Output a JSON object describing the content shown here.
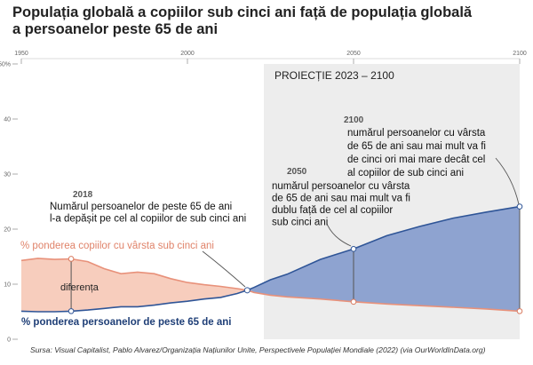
{
  "title_lines": [
    "Populația globală a copiilor sub cinci ani față de populația globală",
    "a persoanelor peste 65 de ani"
  ],
  "source": "Sursa: Visual Capitalist, Pablo Alvarez/Organizația Națiunilor Unite, Perspectivele Populației Mondiale (2022) (via OurWorldInData.org)",
  "chart_data": {
    "type": "area",
    "xlim": [
      1950,
      2100
    ],
    "ylim": [
      0,
      50
    ],
    "x_ticks": [
      {
        "value": 1950,
        "label": "1950"
      },
      {
        "value": 2000,
        "label": "2000"
      },
      {
        "value": 2050,
        "label": "2050"
      },
      {
        "value": 2100,
        "label": "2100"
      }
    ],
    "y_ticks": [
      {
        "value": 0,
        "label": "0"
      },
      {
        "value": 10,
        "label": "10"
      },
      {
        "value": 20,
        "label": "20"
      },
      {
        "value": 30,
        "label": "30"
      },
      {
        "value": 40,
        "label": "40"
      },
      {
        "value": 50,
        "label": "50%"
      }
    ],
    "series": [
      {
        "name": "% ponderea copiilor cu vârsta sub cinci ani",
        "color": "#e8917a",
        "x": [
          1950,
          1955,
          1960,
          1965,
          1970,
          1975,
          1980,
          1985,
          1990,
          1995,
          2000,
          2005,
          2010,
          2015,
          2018,
          2020,
          2025,
          2030,
          2040,
          2050,
          2060,
          2070,
          2080,
          2090,
          2100
        ],
        "values": [
          14.3,
          14.7,
          14.5,
          14.6,
          14.1,
          12.8,
          11.9,
          12.2,
          11.9,
          11.0,
          10.3,
          9.9,
          9.6,
          9.2,
          8.9,
          8.5,
          8.0,
          7.7,
          7.3,
          6.8,
          6.4,
          6.1,
          5.8,
          5.5,
          5.1
        ]
      },
      {
        "name": "% ponderea persoanelor de peste 65 de ani",
        "color": "#2f5597",
        "x": [
          1950,
          1955,
          1960,
          1965,
          1970,
          1975,
          1980,
          1985,
          1990,
          1995,
          2000,
          2005,
          2010,
          2015,
          2018,
          2020,
          2025,
          2030,
          2040,
          2050,
          2060,
          2070,
          2080,
          2090,
          2100
        ],
        "values": [
          5.1,
          5.0,
          5.0,
          5.1,
          5.3,
          5.6,
          5.9,
          5.9,
          6.2,
          6.6,
          6.9,
          7.3,
          7.6,
          8.3,
          8.9,
          9.4,
          10.8,
          11.8,
          14.5,
          16.4,
          18.8,
          20.5,
          22.0,
          23.1,
          24.1
        ]
      }
    ],
    "projection": {
      "from": 2023,
      "to": 2100,
      "label": "PROIECȚIE  2023 – 2100"
    },
    "annotations": [
      {
        "year": "2018",
        "lines": [
          "Numărul persoanelor de peste 65 de ani",
          "l-a depășit pe cel al copiilor de sub cinci ani"
        ]
      },
      {
        "year": "2050",
        "lines": [
          "numărul persoanelor cu vârsta",
          "de 65 de ani sau mai mult va fi",
          "dublu față de cel al copiilor",
          "sub cinci ani"
        ]
      },
      {
        "year": "2100",
        "lines": [
          "numărul persoanelor cu vârsta",
          "de 65 de ani sau mai mult va fi",
          "de cinci ori mai mare decât cel",
          "al copiilor de sub cinci ani"
        ]
      }
    ],
    "difference_label": "diferența",
    "grid": false
  }
}
